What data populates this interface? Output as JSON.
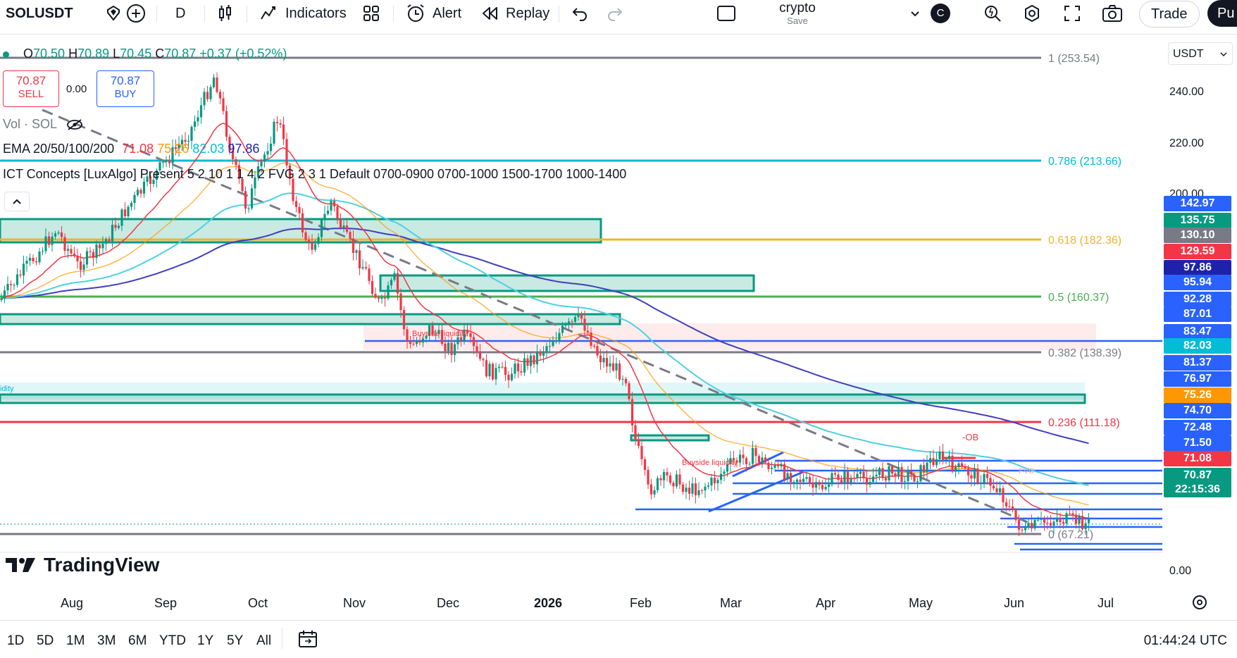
{
  "toolbar": {
    "symbol": "SOLUSDT",
    "interval": "D",
    "indicators_label": "Indicators",
    "alert_label": "Alert",
    "replay_label": "Replay",
    "layout_name": "crypto",
    "layout_save": "Save",
    "avatar_letter": "C",
    "trade_label": "Trade",
    "publish_label": "Pu"
  },
  "legend": {
    "ohlc": {
      "o_label": "O",
      "o": "70.50",
      "h_label": "H",
      "h": "70.89",
      "l_label": "L",
      "l": "70.45",
      "c_label": "C",
      "c": "70.87",
      "change": "+0.37 (+0.52%)"
    },
    "sell_price": "70.87",
    "sell_label": "SELL",
    "spread": "0.00",
    "buy_price": "70.87",
    "buy_label": "BUY",
    "volume_label": "Vol · SOL",
    "ema_label": "EMA 20/50/100/200",
    "ema_values": [
      "71.08",
      "75.26",
      "82.03",
      "97.86"
    ],
    "ict_label": "ICT Concepts [LuxAlgo] Present 5 2 10 1 1 4 2 FVG 2 3 1 Default 0700-0900 0700-1000 1500-1700 1000-1400"
  },
  "currency": "USDT",
  "fib_levels": [
    {
      "label": "1 (253.54)",
      "color": "#787b86"
    },
    {
      "label": "0.786 (213.66)",
      "color": "#00bcd4"
    },
    {
      "label": "0.618 (182.36)",
      "color": "#f0b429"
    },
    {
      "label": "0.5 (160.37)",
      "color": "#4caf50"
    },
    {
      "label": "0.382 (138.39)",
      "color": "#787b86"
    },
    {
      "label": "0.236 (111.18)",
      "color": "#f23645"
    },
    {
      "label": "0 (67.21)",
      "color": "#787b86"
    }
  ],
  "annotations": {
    "buyside1": "Buyside liquidity",
    "buyside2": "Buyside liquidity",
    "ob": "-OB",
    "fvg": "FVG",
    "liq": "idity"
  },
  "price_ticks": [
    "240.00",
    "220.00",
    "200.00",
    "0.00"
  ],
  "price_labels": [
    {
      "value": "142.97",
      "color": "#2962ff"
    },
    {
      "value": "135.75",
      "color": "#089981"
    },
    {
      "value": "130.10",
      "color": "#787b86"
    },
    {
      "value": "129.59",
      "color": "#f23645"
    },
    {
      "value": "97.86",
      "color": "#1e22aa"
    },
    {
      "value": "95.94",
      "color": "#2962ff"
    },
    {
      "value": "92.28",
      "color": "#2962ff"
    },
    {
      "value": "87.01",
      "color": "#2962ff"
    },
    {
      "value": "83.47",
      "color": "#2962ff"
    },
    {
      "value": "82.03",
      "color": "#00bcd4"
    },
    {
      "value": "81.37",
      "color": "#2962ff"
    },
    {
      "value": "76.97",
      "color": "#2962ff"
    },
    {
      "value": "75.26",
      "color": "#ff9800"
    },
    {
      "value": "74.70",
      "color": "#2962ff"
    },
    {
      "value": "72.48",
      "color": "#2962ff"
    },
    {
      "value": "71.50",
      "color": "#2962ff"
    },
    {
      "value": "71.08",
      "color": "#f23645"
    },
    {
      "value": "70.87",
      "color": "#089981"
    },
    {
      "value": "22:15:36",
      "color": "#089981"
    }
  ],
  "time_ticks": [
    "Aug",
    "Sep",
    "Oct",
    "Nov",
    "Dec",
    "2026",
    "Feb",
    "Mar",
    "Apr",
    "May",
    "Jun",
    "Jul"
  ],
  "watermark": "TradingView",
  "ranges": [
    "1D",
    "5D",
    "1M",
    "3M",
    "6M",
    "YTD",
    "1Y",
    "5Y",
    "All"
  ],
  "clock": "01:44:24 UTC",
  "colors": {
    "up": "#089981",
    "down": "#f23645",
    "accent": "#2962ff"
  }
}
